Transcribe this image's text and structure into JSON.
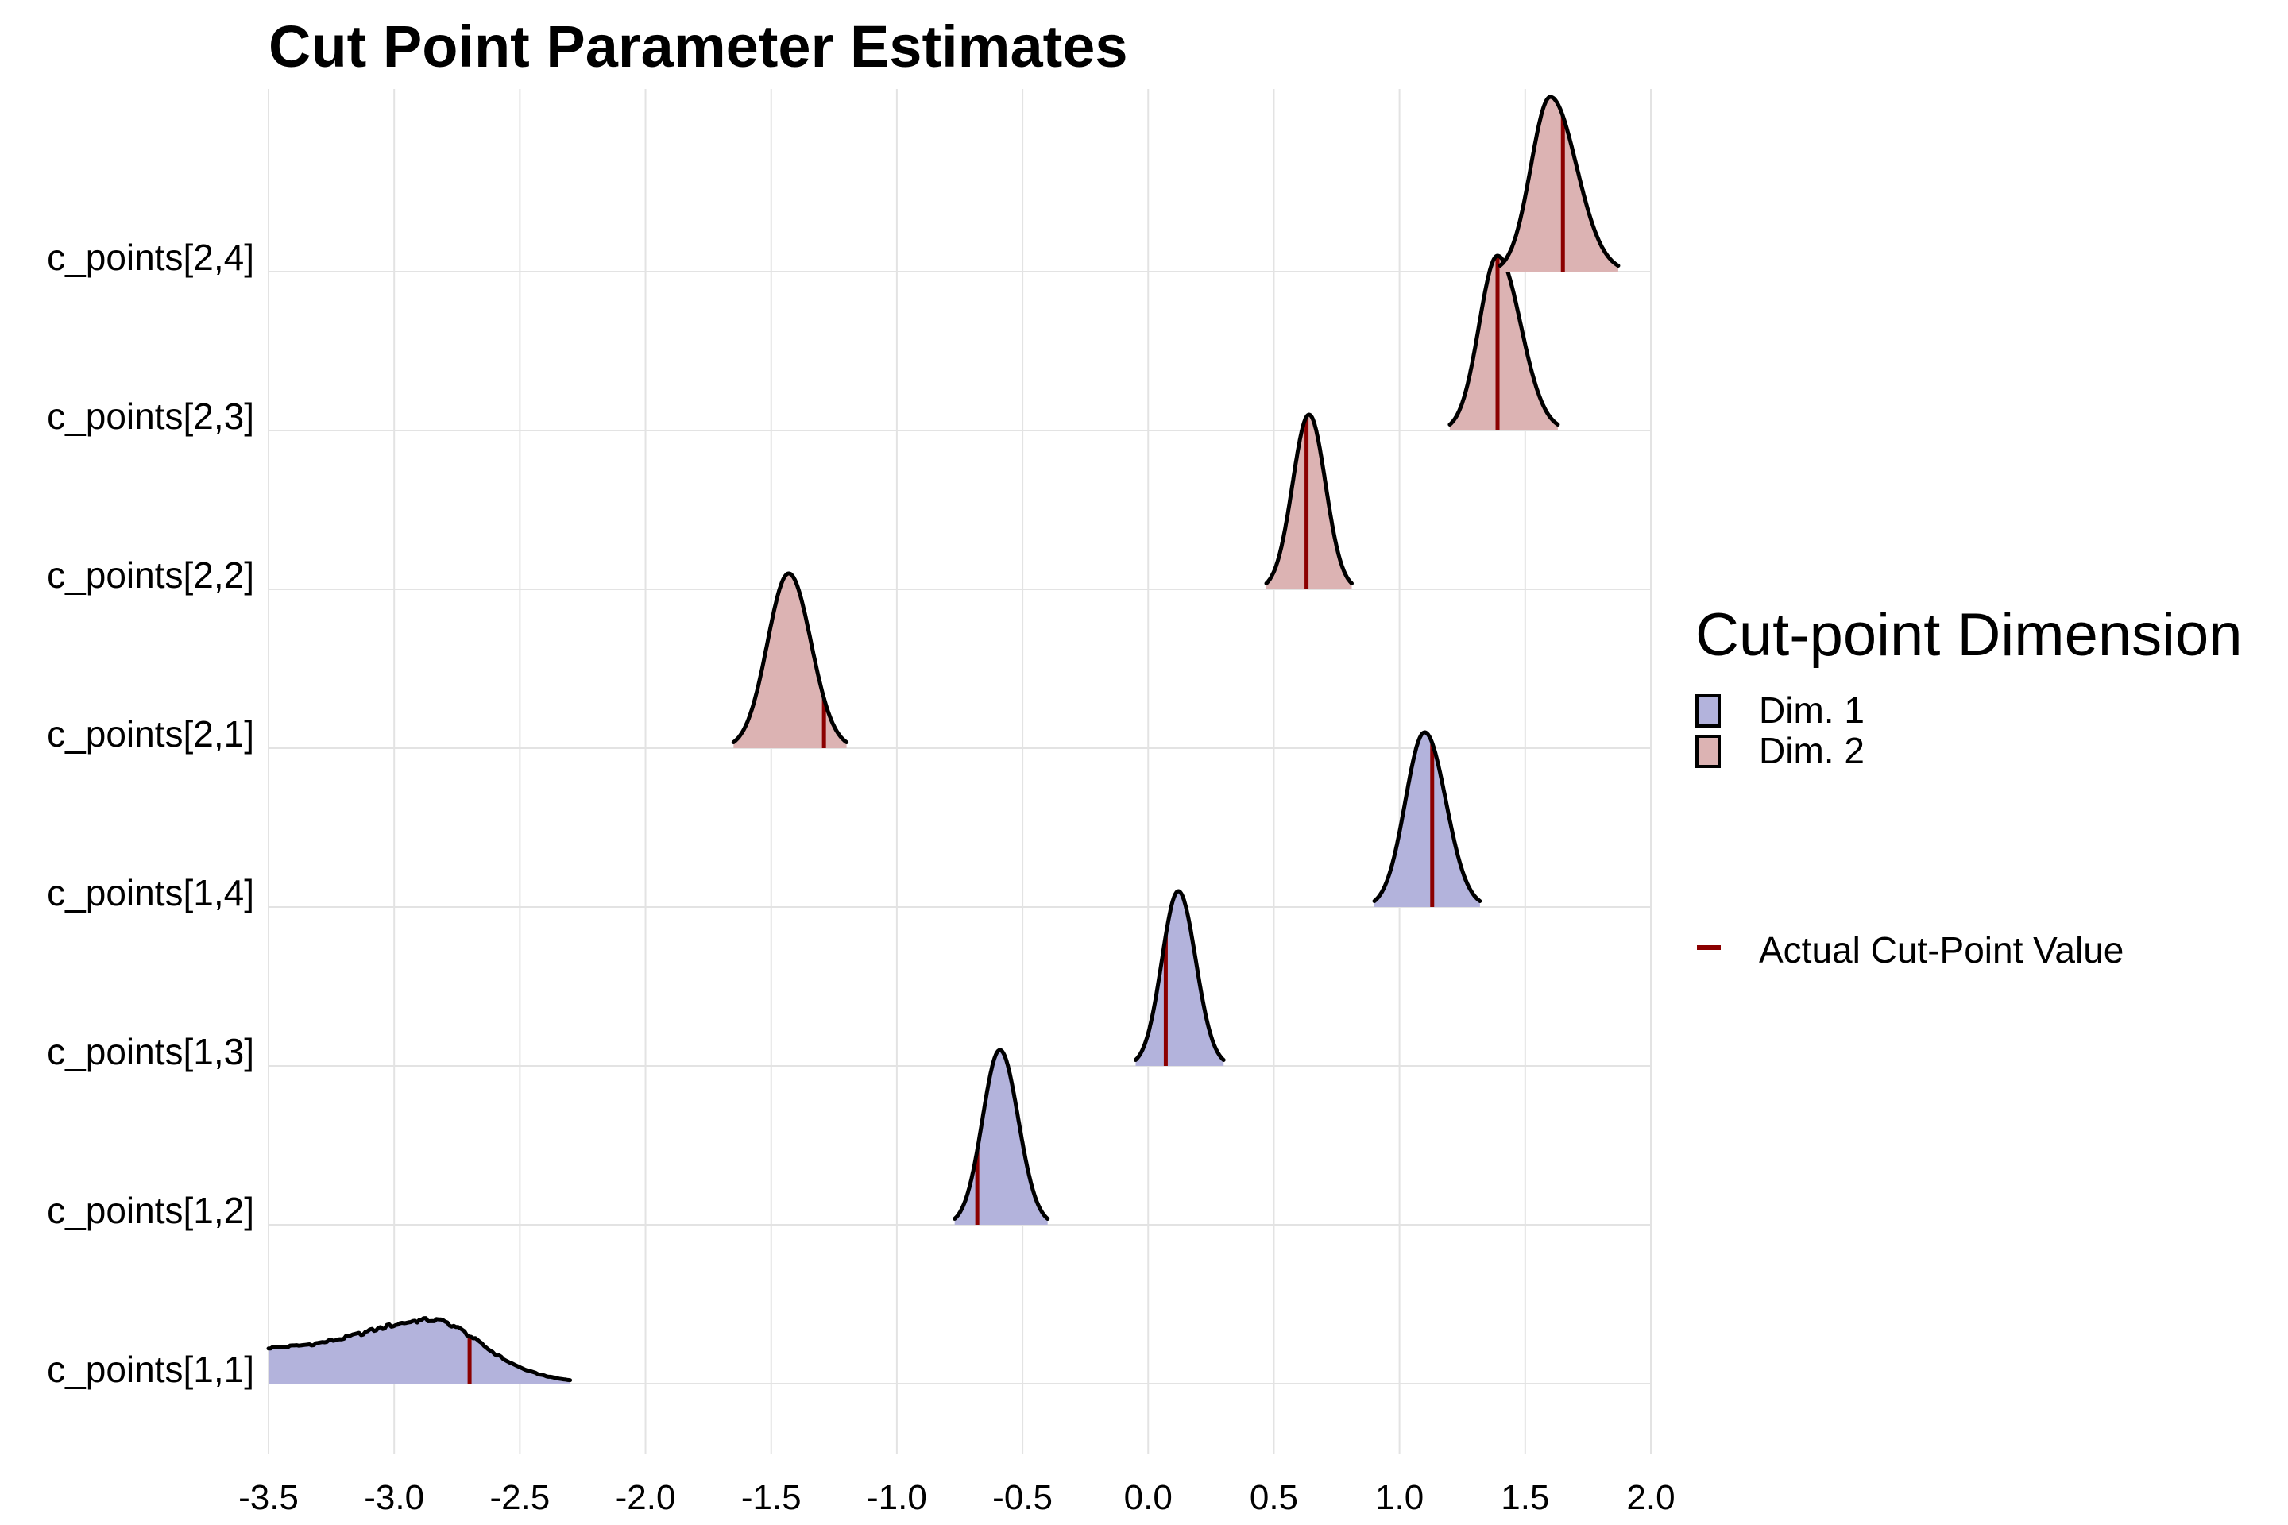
{
  "chart_data": {
    "type": "ridgeline",
    "title": "Cut Point Parameter Estimates",
    "xlabel": "",
    "ylabel": "",
    "xlim": [
      -3.5,
      2.0
    ],
    "x_ticks": [
      "-3.5",
      "-3.0",
      "-2.5",
      "-2.0",
      "-1.5",
      "-1.0",
      "-0.5",
      "0.0",
      "0.5",
      "1.0",
      "1.5",
      "2.0"
    ],
    "grid": true,
    "legend": {
      "title": "Cut-point Dimension",
      "placement": "right",
      "fill_items": [
        {
          "label": "Dim. 1",
          "color": "#b3b3dc"
        },
        {
          "label": "Dim. 2",
          "color": "#dcb3b3"
        }
      ],
      "line_item": {
        "label": "Actual Cut-Point Value",
        "color": "#8b0000"
      }
    },
    "series": [
      {
        "parameter": "c_points[1,1]",
        "dimension": "Dim. 1",
        "range": [
          -3.5,
          -2.3
        ],
        "mode": -2.85,
        "actual": -2.7
      },
      {
        "parameter": "c_points[1,2]",
        "dimension": "Dim. 1",
        "range": [
          -0.77,
          -0.4
        ],
        "mode": -0.59,
        "actual": -0.68
      },
      {
        "parameter": "c_points[1,3]",
        "dimension": "Dim. 1",
        "range": [
          -0.05,
          0.3
        ],
        "mode": 0.12,
        "actual": 0.07
      },
      {
        "parameter": "c_points[1,4]",
        "dimension": "Dim. 1",
        "range": [
          0.9,
          1.32
        ],
        "mode": 1.1,
        "actual": 1.13
      },
      {
        "parameter": "c_points[2,1]",
        "dimension": "Dim. 2",
        "range": [
          -1.65,
          -1.2
        ],
        "mode": -1.43,
        "actual": -1.29
      },
      {
        "parameter": "c_points[2,2]",
        "dimension": "Dim. 2",
        "range": [
          0.47,
          0.81
        ],
        "mode": 0.64,
        "actual": 0.63
      },
      {
        "parameter": "c_points[2,3]",
        "dimension": "Dim. 2",
        "range": [
          1.2,
          1.63
        ],
        "mode": 1.39,
        "actual": 1.39
      },
      {
        "parameter": "c_points[2,4]",
        "dimension": "Dim. 2",
        "range": [
          1.4,
          1.87
        ],
        "mode": 1.6,
        "actual": 1.65
      }
    ],
    "colors": {
      "dim1_fill": "#b3b3dc",
      "dim2_fill": "#dcb3b3",
      "outline": "#000000",
      "actual_line": "#8b0000",
      "grid": "#e3e3e3"
    }
  }
}
